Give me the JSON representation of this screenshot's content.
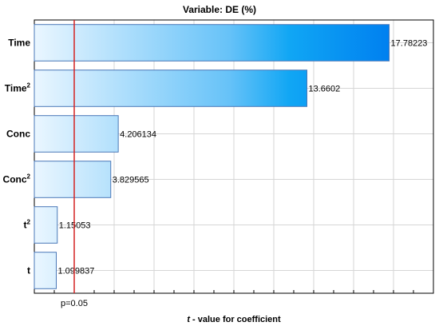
{
  "chart_data": {
    "type": "bar",
    "orientation": "horizontal",
    "title": "Variable: DE (%)",
    "xlabel_italic": "t",
    "xlabel_rest": " - value for coefficient",
    "categories": [
      {
        "base": "Time",
        "sup": ""
      },
      {
        "base": "Time",
        "sup": "2"
      },
      {
        "base": "Conc",
        "sup": ""
      },
      {
        "base": "Conc",
        "sup": "2"
      },
      {
        "base": "t",
        "sup": "2"
      },
      {
        "base": "t",
        "sup": ""
      }
    ],
    "values": [
      17.78223,
      13.6602,
      4.206134,
      3.829565,
      1.15053,
      1.099837
    ],
    "value_labels": [
      "17.78223",
      "13.6602",
      "4.206134",
      "3.829565",
      "1.15053",
      "1.099837"
    ],
    "reference_line": {
      "value": 2.0,
      "label": "p=0.05",
      "color": "#d42020"
    },
    "xlim": [
      0,
      20
    ],
    "grid": true,
    "colors": {
      "bar_light": "#eaf6ff",
      "bar_dark": "#0080f0",
      "bar_border": "#4a78b8"
    }
  }
}
